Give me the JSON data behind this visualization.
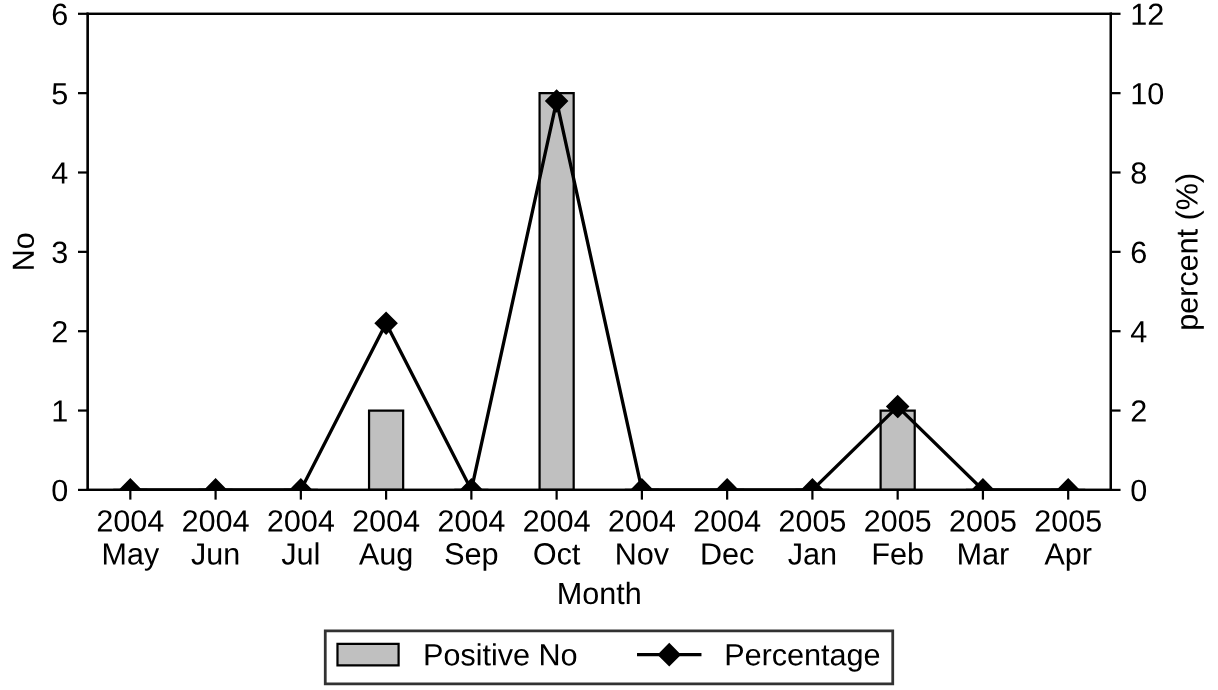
{
  "chart_data": {
    "type": "bar",
    "xlabel": "Month",
    "ylabel": "No",
    "y2label": "percent (%)",
    "categories": [
      "2004\nMay",
      "2004\nJun",
      "2004\nJul",
      "2004\nAug",
      "2004\nSep",
      "2004\nOct",
      "2004\nNov",
      "2004\nDec",
      "2005\nJan",
      "2005\nFeb",
      "2005\nMar",
      "2005\nApr"
    ],
    "series": [
      {
        "name": "Positive No",
        "color": "#c0c0c0",
        "values": [
          0,
          0,
          0,
          1,
          0,
          5,
          0,
          0,
          0,
          1,
          0,
          0
        ]
      },
      {
        "name": "Percentage",
        "type": "line",
        "axis": "y2",
        "color": "#000000",
        "marker": "diamond",
        "values": [
          0,
          0,
          0,
          4.2,
          0,
          9.8,
          0,
          0,
          0,
          2.1,
          0,
          0
        ]
      }
    ],
    "ylim": [
      0,
      6
    ],
    "yticks": [
      0,
      1,
      2,
      3,
      4,
      5,
      6
    ],
    "y2lim": [
      0,
      12
    ],
    "y2ticks": [
      0,
      2,
      4,
      6,
      8,
      10,
      12
    ],
    "grid": false,
    "legend": "bottom"
  }
}
